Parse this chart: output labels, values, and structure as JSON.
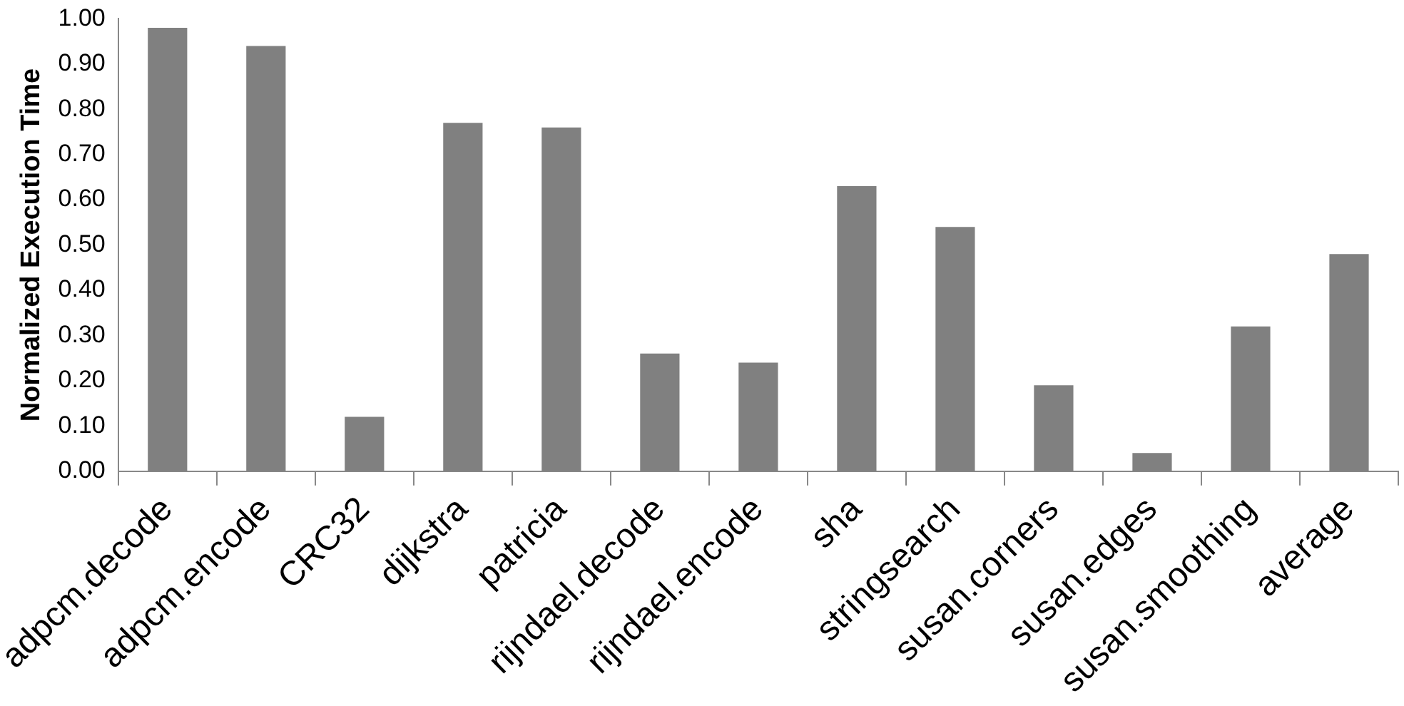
{
  "chart_data": {
    "type": "bar",
    "ylabel": "Normalized Execution Time",
    "categories": [
      "adpcm.decode",
      "adpcm.encode",
      "CRC32",
      "dijkstra",
      "patricia",
      "rijndael.decode",
      "rijndael.encode",
      "sha",
      "stringsearch",
      "susan.corners",
      "susan.edges",
      "susan.smoothing",
      "average"
    ],
    "values": [
      0.98,
      0.94,
      0.12,
      0.77,
      0.76,
      0.26,
      0.24,
      0.63,
      0.54,
      0.19,
      0.04,
      0.32,
      0.48
    ],
    "color": "#808080",
    "ylim": [
      0,
      1
    ],
    "yticks": [
      {
        "value": 0,
        "label": "0.00"
      },
      {
        "value": 0.1,
        "label": "0.10"
      },
      {
        "value": 0.2,
        "label": "0.20"
      },
      {
        "value": 0.3,
        "label": "0.30"
      },
      {
        "value": 0.4,
        "label": "0.40"
      },
      {
        "value": 0.5,
        "label": "0.50"
      },
      {
        "value": 0.6,
        "label": "0.60"
      },
      {
        "value": 0.7,
        "label": "0.70"
      },
      {
        "value": 0.8,
        "label": "0.80"
      },
      {
        "value": 0.9,
        "label": "0.90"
      },
      {
        "value": 1,
        "label": "1.00"
      }
    ],
    "grid": false,
    "legend": false
  }
}
